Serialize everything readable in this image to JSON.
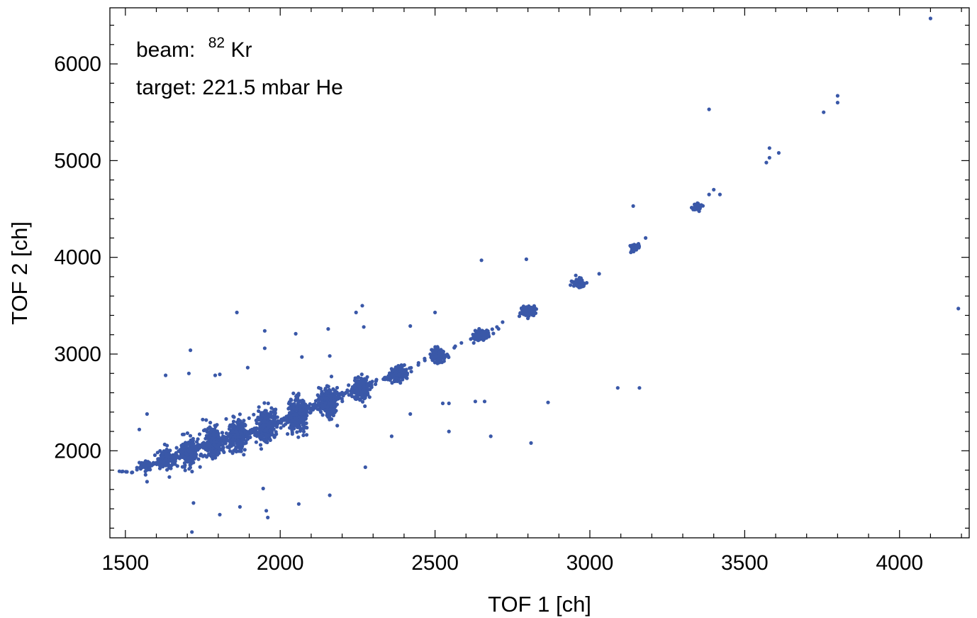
{
  "chart_data": {
    "type": "scatter",
    "title": "",
    "xlabel": "TOF 1 [ch]",
    "ylabel": "TOF 2 [ch]",
    "xlim": [
      1450,
      4225
    ],
    "ylim": [
      1100,
      6580
    ],
    "x_ticks": [
      "1500",
      "2000",
      "2500",
      "3000",
      "3500",
      "4000"
    ],
    "y_ticks": [
      "2000",
      "3000",
      "4000",
      "5000",
      "6000"
    ],
    "grid": false,
    "color": "#3a58a8",
    "annotations": {
      "beam_prefix": "beam:",
      "beam_superscript": "82",
      "beam_element": "Kr",
      "target": "target: 221.5 mbar He"
    },
    "clusters": [
      {
        "x": 1500,
        "y": 1775,
        "n": 6,
        "sx": 10,
        "sy": 8
      },
      {
        "x": 1560,
        "y": 1840,
        "n": 40,
        "sx": 10,
        "sy": 30
      },
      {
        "x": 1630,
        "y": 1910,
        "n": 110,
        "sx": 13,
        "sy": 50
      },
      {
        "x": 1705,
        "y": 1990,
        "n": 170,
        "sx": 15,
        "sy": 70
      },
      {
        "x": 1785,
        "y": 2080,
        "n": 210,
        "sx": 15,
        "sy": 75
      },
      {
        "x": 1865,
        "y": 2160,
        "n": 230,
        "sx": 15,
        "sy": 80
      },
      {
        "x": 1955,
        "y": 2260,
        "n": 250,
        "sx": 16,
        "sy": 90
      },
      {
        "x": 2055,
        "y": 2370,
        "n": 260,
        "sx": 16,
        "sy": 85
      },
      {
        "x": 2155,
        "y": 2510,
        "n": 230,
        "sx": 15,
        "sy": 75
      },
      {
        "x": 2260,
        "y": 2650,
        "n": 200,
        "sx": 14,
        "sy": 55
      },
      {
        "x": 2380,
        "y": 2800,
        "n": 150,
        "sx": 13,
        "sy": 40
      },
      {
        "x": 2510,
        "y": 2990,
        "n": 130,
        "sx": 11,
        "sy": 35
      },
      {
        "x": 2650,
        "y": 3200,
        "n": 120,
        "sx": 11,
        "sy": 28
      },
      {
        "x": 2800,
        "y": 3450,
        "n": 95,
        "sx": 12,
        "sy": 28
      },
      {
        "x": 2965,
        "y": 3740,
        "n": 65,
        "sx": 10,
        "sy": 22
      },
      {
        "x": 3145,
        "y": 4100,
        "n": 45,
        "sx": 10,
        "sy": 22
      },
      {
        "x": 3350,
        "y": 4520,
        "n": 35,
        "sx": 9,
        "sy": 22
      }
    ],
    "bridges": [
      {
        "x1": 1500,
        "y1": 1775,
        "x2": 1560,
        "y2": 1840,
        "n": 8
      },
      {
        "x1": 1560,
        "y1": 1840,
        "x2": 1630,
        "y2": 1910,
        "n": 25
      },
      {
        "x1": 1630,
        "y1": 1910,
        "x2": 1705,
        "y2": 1990,
        "n": 35
      },
      {
        "x1": 1705,
        "y1": 1990,
        "x2": 1785,
        "y2": 2080,
        "n": 40
      },
      {
        "x1": 1785,
        "y1": 2080,
        "x2": 1865,
        "y2": 2160,
        "n": 45
      },
      {
        "x1": 1865,
        "y1": 2160,
        "x2": 1955,
        "y2": 2260,
        "n": 50
      },
      {
        "x1": 1955,
        "y1": 2260,
        "x2": 2055,
        "y2": 2370,
        "n": 55
      },
      {
        "x1": 2055,
        "y1": 2370,
        "x2": 2155,
        "y2": 2510,
        "n": 50
      },
      {
        "x1": 2155,
        "y1": 2510,
        "x2": 2260,
        "y2": 2650,
        "n": 40
      },
      {
        "x1": 2260,
        "y1": 2650,
        "x2": 2380,
        "y2": 2800,
        "n": 30
      },
      {
        "x1": 2380,
        "y1": 2800,
        "x2": 2510,
        "y2": 2990,
        "n": 15
      },
      {
        "x1": 2510,
        "y1": 2990,
        "x2": 2650,
        "y2": 3200,
        "n": 8
      },
      {
        "x1": 2650,
        "y1": 3200,
        "x2": 2800,
        "y2": 3450,
        "n": 4
      }
    ],
    "outliers": [
      [
        4100,
        6470
      ],
      [
        3800,
        5670
      ],
      [
        3800,
        5600
      ],
      [
        3755,
        5500
      ],
      [
        3385,
        5530
      ],
      [
        3570,
        4980
      ],
      [
        3580,
        5130
      ],
      [
        3580,
        5030
      ],
      [
        3610,
        5080
      ],
      [
        3140,
        4530
      ],
      [
        3400,
        4700
      ],
      [
        3420,
        4650
      ],
      [
        3385,
        4650
      ],
      [
        3180,
        4200
      ],
      [
        3030,
        3830
      ],
      [
        2650,
        3970
      ],
      [
        2795,
        3980
      ],
      [
        4190,
        3470
      ],
      [
        2500,
        3430
      ],
      [
        2265,
        3500
      ],
      [
        2245,
        3430
      ],
      [
        1860,
        3430
      ],
      [
        1950,
        3240
      ],
      [
        2050,
        3210
      ],
      [
        2155,
        3260
      ],
      [
        2270,
        3280
      ],
      [
        2420,
        3290
      ],
      [
        2700,
        3280
      ],
      [
        1710,
        3040
      ],
      [
        1950,
        3060
      ],
      [
        2070,
        2970
      ],
      [
        2160,
        2980
      ],
      [
        1630,
        2780
      ],
      [
        1790,
        2780
      ],
      [
        1805,
        2790
      ],
      [
        1895,
        2860
      ],
      [
        1705,
        2800
      ],
      [
        3090,
        2650
      ],
      [
        3160,
        2650
      ],
      [
        2630,
        2510
      ],
      [
        2660,
        2510
      ],
      [
        2525,
        2490
      ],
      [
        2545,
        2490
      ],
      [
        2865,
        2500
      ],
      [
        2420,
        2380
      ],
      [
        2545,
        2200
      ],
      [
        2680,
        2150
      ],
      [
        2360,
        2150
      ],
      [
        2810,
        2080
      ],
      [
        1570,
        2380
      ],
      [
        1545,
        2220
      ],
      [
        2275,
        1830
      ],
      [
        1570,
        1680
      ],
      [
        1945,
        1610
      ],
      [
        2160,
        1540
      ],
      [
        1720,
        1460
      ],
      [
        1870,
        1420
      ],
      [
        2060,
        1450
      ],
      [
        1955,
        1380
      ],
      [
        1960,
        1310
      ],
      [
        1805,
        1340
      ],
      [
        1715,
        1160
      ]
    ]
  }
}
